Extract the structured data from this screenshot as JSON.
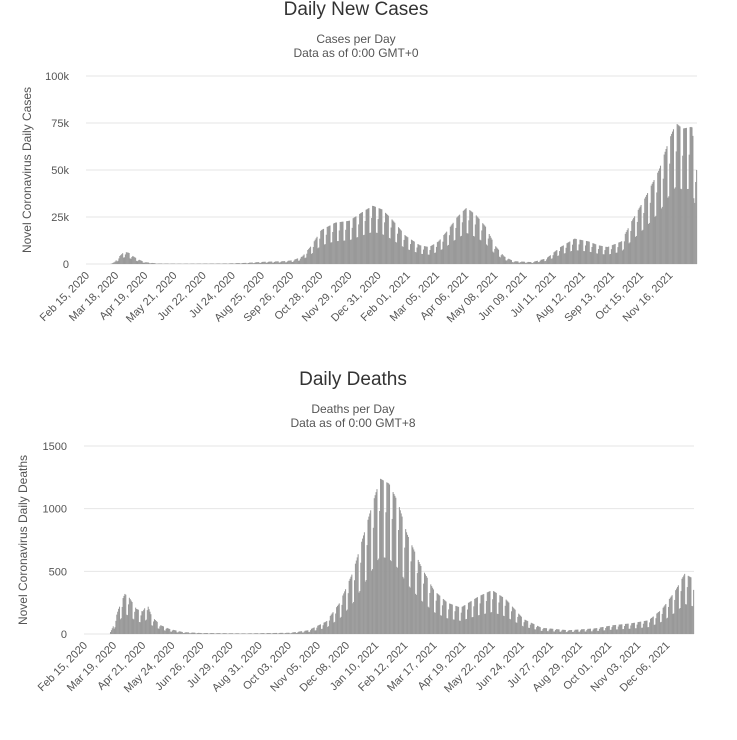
{
  "chart_data": [
    {
      "type": "bar",
      "title": "Daily New Cases",
      "subtitle_line1": "Cases per Day",
      "subtitle_line2": "Data as of 0:00 GMT+0",
      "ylabel": "Novel Coronavirus Daily Cases",
      "xlabel": "",
      "ylim": [
        0,
        100000
      ],
      "y_ticks": [
        {
          "value": 0,
          "label": "0"
        },
        {
          "value": 25000,
          "label": "25k"
        },
        {
          "value": 50000,
          "label": "50k"
        },
        {
          "value": 75000,
          "label": "75k"
        },
        {
          "value": 100000,
          "label": "100k"
        }
      ],
      "x_ticks": [
        "Feb 15, 2020",
        "Mar 18, 2020",
        "Apr 19, 2020",
        "May 21, 2020",
        "Jun 22, 2020",
        "Jul 24, 2020",
        "Aug 25, 2020",
        "Sep 26, 2020",
        "Oct 28, 2020",
        "Nov 29, 2020",
        "Dec 31, 2020",
        "Feb 01, 2021",
        "Mar 05, 2021",
        "Apr 06, 2021",
        "May 08, 2021",
        "Jun 09, 2021",
        "Jul 11, 2021",
        "Aug 12, 2021",
        "Sep 13, 2021",
        "Oct 15, 2021",
        "Nov 16, 2021"
      ],
      "grid": true,
      "legend": "none",
      "bar_color": "#999999",
      "series": [
        {
          "name": "Daily Cases",
          "envelope": {
            "x_index_range": [
              0,
              680
            ],
            "points": [
              [
                0,
                0
              ],
              [
                25,
                0
              ],
              [
                30,
                1000
              ],
              [
                35,
                4000
              ],
              [
                40,
                6500
              ],
              [
                45,
                6000
              ],
              [
                50,
                4000
              ],
              [
                55,
                2500
              ],
              [
                62,
                1000
              ],
              [
                75,
                300
              ],
              [
                100,
                200
              ],
              [
                150,
                300
              ],
              [
                170,
                600
              ],
              [
                190,
                1200
              ],
              [
                210,
                1500
              ],
              [
                220,
                2000
              ],
              [
                230,
                4000
              ],
              [
                240,
                10000
              ],
              [
                250,
                18000
              ],
              [
                265,
                22000
              ],
              [
                280,
                23000
              ],
              [
                295,
                28000
              ],
              [
                305,
                31000
              ],
              [
                315,
                29000
              ],
              [
                325,
                24000
              ],
              [
                340,
                15000
              ],
              [
                355,
                10000
              ],
              [
                365,
                9000
              ],
              [
                375,
                12000
              ],
              [
                385,
                18000
              ],
              [
                395,
                25000
              ],
              [
                405,
                30000
              ],
              [
                415,
                26000
              ],
              [
                425,
                20000
              ],
              [
                435,
                10000
              ],
              [
                445,
                4000
              ],
              [
                455,
                1500
              ],
              [
                475,
                1000
              ],
              [
                490,
                3000
              ],
              [
                505,
                9000
              ],
              [
                520,
                13500
              ],
              [
                535,
                12000
              ],
              [
                545,
                10000
              ],
              [
                555,
                9000
              ],
              [
                570,
                12000
              ],
              [
                580,
                22000
              ],
              [
                595,
                35000
              ],
              [
                610,
                50000
              ],
              [
                620,
                65000
              ],
              [
                628,
                75000
              ],
              [
                635,
                72000
              ],
              [
                645,
                73000
              ],
              [
                650,
                50000
              ]
            ]
          },
          "weekly_dip_fraction": 0.55
        }
      ]
    },
    {
      "type": "bar",
      "title": "Daily Deaths",
      "subtitle_line1": "Deaths per Day",
      "subtitle_line2": "Data as of 0:00 GMT+8",
      "ylabel": "Novel Coronavirus Daily Deaths",
      "xlabel": "",
      "ylim": [
        0,
        1500
      ],
      "y_ticks": [
        {
          "value": 0,
          "label": "0"
        },
        {
          "value": 500,
          "label": "500"
        },
        {
          "value": 1000,
          "label": "1000"
        },
        {
          "value": 1500,
          "label": "1500"
        }
      ],
      "x_ticks": [
        "Feb 15, 2020",
        "Mar 19, 2020",
        "Apr 21, 2020",
        "May 24, 2020",
        "Jun 26, 2020",
        "Jul 29, 2020",
        "Aug 31, 2020",
        "Oct 03, 2020",
        "Nov 05, 2020",
        "Dec 08, 2020",
        "Jan 10, 2021",
        "Feb 12, 2021",
        "Mar 17, 2021",
        "Apr 19, 2021",
        "May 22, 2021",
        "Jun 24, 2021",
        "Jul 27, 2021",
        "Aug 29, 2021",
        "Oct 01, 2021",
        "Nov 03, 2021",
        "Dec 06, 2021"
      ],
      "grid": true,
      "legend": "none",
      "bar_color": "#999999",
      "series": [
        {
          "name": "Daily Deaths",
          "envelope": {
            "points": [
              [
                0,
                0
              ],
              [
                28,
                0
              ],
              [
                32,
                60
              ],
              [
                38,
                200
              ],
              [
                45,
                320
              ],
              [
                50,
                290
              ],
              [
                58,
                200
              ],
              [
                65,
                180
              ],
              [
                70,
                240
              ],
              [
                75,
                140
              ],
              [
                85,
                70
              ],
              [
                95,
                40
              ],
              [
                110,
                15
              ],
              [
                130,
                8
              ],
              [
                180,
                5
              ],
              [
                230,
                10
              ],
              [
                250,
                30
              ],
              [
                270,
                100
              ],
              [
                285,
                250
              ],
              [
                300,
                500
              ],
              [
                310,
                750
              ],
              [
                320,
                1000
              ],
              [
                330,
                1240
              ],
              [
                340,
                1200
              ],
              [
                350,
                1050
              ],
              [
                360,
                800
              ],
              [
                375,
                550
              ],
              [
                390,
                350
              ],
              [
                405,
                250
              ],
              [
                420,
                210
              ],
              [
                440,
                300
              ],
              [
                455,
                350
              ],
              [
                470,
                280
              ],
              [
                490,
                120
              ],
              [
                510,
                50
              ],
              [
                540,
                30
              ],
              [
                570,
                45
              ],
              [
                590,
                70
              ],
              [
                610,
                85
              ],
              [
                630,
                110
              ],
              [
                645,
                200
              ],
              [
                660,
                350
              ],
              [
                670,
                480
              ],
              [
                680,
                440
              ]
            ]
          },
          "weekly_dip_fraction": 0.5
        }
      ]
    }
  ]
}
